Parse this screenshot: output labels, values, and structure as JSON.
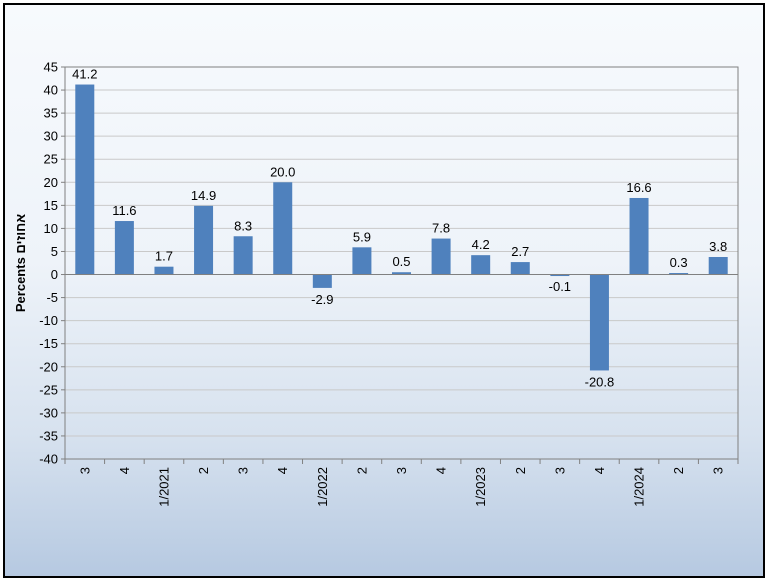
{
  "chart_data": {
    "type": "bar",
    "title": "",
    "xlabel": "",
    "ylabel": "Percents אחוזים",
    "ylim": [
      -40,
      45
    ],
    "yticks": [
      45,
      40,
      35,
      30,
      25,
      20,
      15,
      10,
      5,
      0,
      -5,
      -10,
      -15,
      -20,
      -25,
      -30,
      -35,
      -40
    ],
    "categories": [
      "3",
      "4",
      "1/2021",
      "2",
      "3",
      "4",
      "1/2022",
      "2",
      "3",
      "4",
      "1/2023",
      "2",
      "3",
      "4",
      "1/2024",
      "2",
      "3"
    ],
    "values": [
      41.2,
      11.6,
      1.7,
      14.9,
      8.3,
      20.0,
      -2.9,
      5.9,
      0.5,
      7.8,
      4.2,
      2.7,
      -0.1,
      -20.8,
      16.6,
      0.3,
      3.8
    ],
    "data_labels": [
      "41.2",
      "11.6",
      "1.7",
      "14.9",
      "8.3",
      "20.0",
      "-2.9",
      "5.9",
      "0.5",
      "7.8",
      "4.2",
      "2.7",
      "-0.1",
      "-20.8",
      "16.6",
      "0.3",
      "3.8"
    ],
    "bar_color": "#4f81bd",
    "grid": true,
    "legend": "none"
  }
}
